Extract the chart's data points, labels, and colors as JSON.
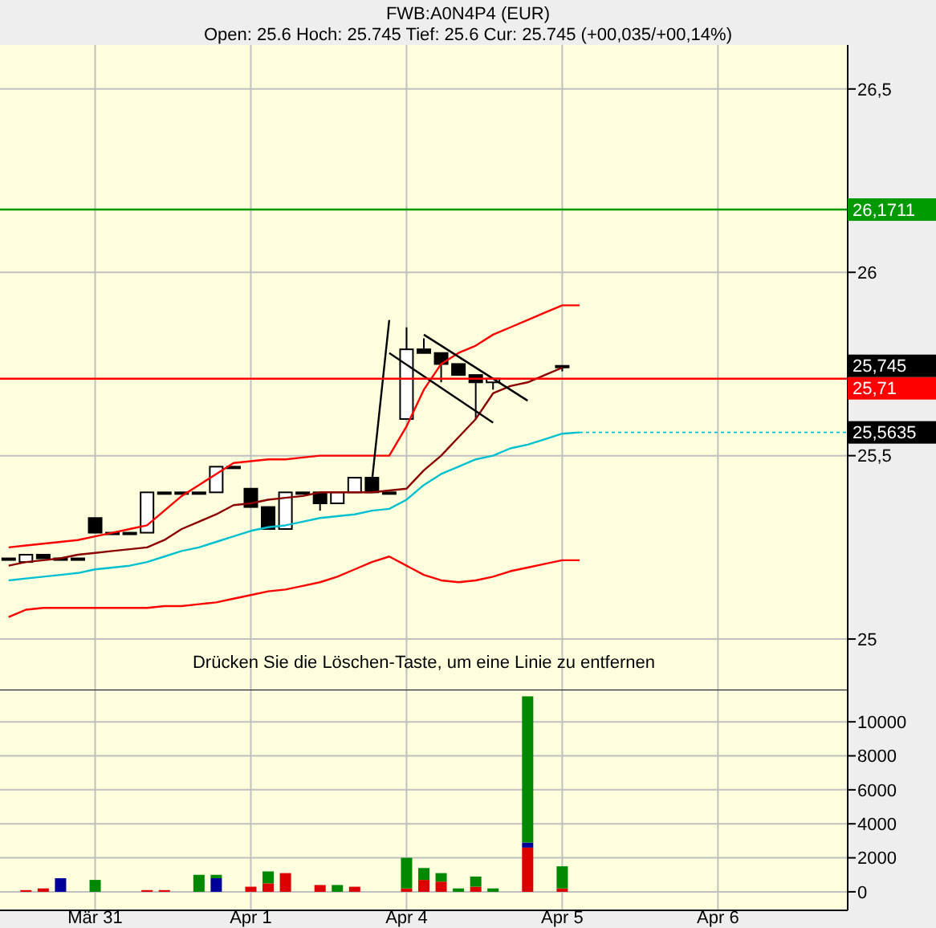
{
  "chart_data": [
    {
      "type": "candlestick",
      "title": "FWB:A0N4P4 (EUR)",
      "subtitle": "Open: 25.6 Hoch: 25.745 Tief: 25.6 Cur: 25.745 (+00,035/+00,14%)",
      "categories": [
        null,
        null,
        null,
        null,
        null,
        null,
        null,
        null,
        null,
        null,
        null,
        null,
        null,
        null,
        null,
        null,
        null,
        null,
        null,
        null,
        null,
        null,
        null,
        null,
        null,
        null,
        null,
        null,
        null,
        null,
        null,
        null,
        null,
        null,
        null,
        null,
        null,
        null,
        null,
        null,
        null,
        null,
        null,
        null,
        null,
        null,
        null,
        null,
        null
      ],
      "ohlc": [
        [
          25.22,
          25.22,
          25.22,
          25.22
        ],
        [
          25.21,
          25.23,
          25.21,
          25.23
        ],
        [
          25.23,
          25.23,
          25.22,
          25.22
        ],
        [
          25.22,
          25.22,
          25.22,
          25.22
        ],
        [
          25.22,
          25.22,
          25.22,
          25.22
        ],
        [
          25.33,
          25.33,
          25.29,
          25.29
        ],
        [
          25.29,
          25.29,
          25.29,
          25.29
        ],
        [
          25.29,
          25.29,
          25.29,
          25.29
        ],
        [
          25.29,
          25.4,
          25.29,
          25.4
        ],
        [
          25.4,
          25.4,
          25.4,
          25.4
        ],
        [
          25.4,
          25.4,
          25.4,
          25.4
        ],
        [
          25.4,
          25.4,
          25.4,
          25.4
        ],
        [
          25.4,
          25.47,
          25.4,
          25.47
        ],
        [
          25.47,
          25.47,
          25.47,
          25.47
        ],
        [
          25.41,
          25.41,
          25.36,
          25.36
        ],
        [
          25.36,
          25.36,
          25.3,
          25.3
        ],
        [
          25.3,
          25.4,
          25.3,
          25.4
        ],
        [
          25.4,
          25.4,
          25.4,
          25.4
        ],
        [
          25.4,
          25.4,
          25.35,
          25.37
        ],
        [
          25.37,
          25.4,
          25.37,
          25.4
        ],
        [
          25.4,
          25.44,
          25.4,
          25.44
        ],
        [
          25.44,
          25.44,
          25.4,
          25.4
        ],
        [
          25.4,
          25.4,
          25.4,
          25.4
        ],
        [
          25.6,
          25.85,
          25.6,
          25.79
        ],
        [
          25.79,
          25.82,
          25.78,
          25.78
        ],
        [
          25.78,
          25.78,
          25.7,
          25.75
        ],
        [
          25.75,
          25.75,
          25.72,
          25.72
        ],
        [
          25.72,
          25.72,
          25.6,
          25.7
        ],
        [
          25.7,
          25.71,
          25.68,
          25.71
        ],
        null,
        null,
        null,
        [
          25.745,
          25.745,
          25.73,
          25.745
        ],
        null,
        null,
        null,
        null,
        null,
        null,
        null,
        null,
        null,
        null,
        null,
        null,
        null,
        null,
        null,
        null
      ],
      "value_labels": [
        null,
        null,
        null,
        null,
        null,
        null,
        null,
        null,
        null,
        null,
        null,
        null,
        null,
        null,
        null,
        null,
        null,
        null,
        null,
        null,
        null,
        null,
        null,
        null,
        null,
        null,
        null,
        null,
        null,
        null,
        null,
        null,
        "25,745",
        null,
        null,
        null,
        null,
        null,
        null,
        null,
        null,
        null,
        null,
        null,
        null,
        null,
        null,
        null,
        null
      ],
      "series": [
        {
          "type": "line",
          "color": "#ff0000",
          "values": [
            25.25,
            25.255,
            25.26,
            25.265,
            25.27,
            25.28,
            25.29,
            25.3,
            25.31,
            25.35,
            25.39,
            25.42,
            25.45,
            25.48,
            25.485,
            25.49,
            25.49,
            25.495,
            25.5,
            25.5,
            25.5,
            25.5,
            25.5,
            25.58,
            25.68,
            25.75,
            25.78,
            25.8,
            25.83,
            25.85,
            25.87,
            25.89,
            25.91,
            25.91,
            null,
            null,
            null,
            null,
            null,
            null,
            null,
            null,
            null,
            null,
            null,
            null,
            null,
            null,
            null
          ]
        },
        {
          "type": "line",
          "color": "#8b0000",
          "values": [
            25.2,
            25.21,
            25.215,
            25.22,
            25.23,
            25.235,
            25.24,
            25.245,
            25.25,
            25.27,
            25.3,
            25.32,
            25.34,
            25.365,
            25.37,
            25.38,
            25.385,
            25.39,
            25.4,
            25.4,
            25.4,
            25.4,
            25.405,
            25.41,
            25.46,
            25.5,
            25.55,
            25.6,
            25.67,
            25.69,
            25.7,
            25.72,
            25.74,
            null,
            null,
            null,
            null,
            null,
            null,
            null,
            null,
            null,
            null,
            null,
            null,
            null,
            null,
            null,
            null
          ]
        },
        {
          "type": "line",
          "color": "#00c0d0",
          "values": [
            25.16,
            25.165,
            25.17,
            25.175,
            25.18,
            25.19,
            25.195,
            25.2,
            25.21,
            25.225,
            25.24,
            25.25,
            25.265,
            25.28,
            25.295,
            25.305,
            25.31,
            25.32,
            25.33,
            25.335,
            25.34,
            25.35,
            25.355,
            25.38,
            25.42,
            25.45,
            25.47,
            25.49,
            25.5,
            25.52,
            25.53,
            25.545,
            25.56,
            25.5635,
            null,
            null,
            null,
            null,
            null,
            null,
            null,
            null,
            null,
            null,
            null,
            null,
            null,
            null,
            null
          ],
          "value_labels": [
            null,
            null,
            null,
            null,
            null,
            null,
            null,
            null,
            null,
            null,
            null,
            null,
            null,
            null,
            null,
            null,
            null,
            null,
            null,
            null,
            null,
            null,
            null,
            null,
            null,
            null,
            null,
            null,
            null,
            null,
            null,
            null,
            null,
            "25,5635",
            null,
            null,
            null,
            null,
            null,
            null,
            null,
            null,
            null,
            null,
            null,
            null,
            null,
            null,
            null
          ]
        },
        {
          "type": "line",
          "color": "#ff0000",
          "values": [
            25.06,
            25.08,
            25.085,
            25.085,
            25.085,
            25.085,
            25.085,
            25.085,
            25.085,
            25.09,
            25.09,
            25.095,
            25.1,
            25.11,
            25.12,
            25.13,
            25.135,
            25.145,
            25.155,
            25.17,
            25.19,
            25.21,
            25.225,
            25.2,
            25.175,
            25.16,
            25.155,
            25.16,
            25.17,
            25.185,
            25.195,
            25.205,
            25.215,
            25.215,
            null,
            null,
            null,
            null,
            null,
            null,
            null,
            null,
            null,
            null,
            null,
            null,
            null,
            null,
            null
          ]
        },
        {
          "type": "line",
          "color": "#000000",
          "values": [
            null,
            null,
            null,
            null,
            null,
            null,
            null,
            null,
            null,
            null,
            null,
            null,
            null,
            null,
            null,
            null,
            null,
            null,
            null,
            null,
            null,
            25.43,
            25.87,
            null,
            null,
            null,
            null,
            null,
            null,
            null,
            null,
            null,
            null,
            null,
            null,
            null,
            null,
            null,
            null,
            null,
            null,
            null,
            null,
            null,
            null,
            null,
            null,
            null,
            null
          ]
        },
        {
          "type": "line",
          "color": "#000000",
          "values": [
            null,
            null,
            null,
            null,
            null,
            null,
            null,
            null,
            null,
            null,
            null,
            null,
            null,
            null,
            null,
            null,
            null,
            null,
            null,
            null,
            null,
            null,
            null,
            null,
            25.83,
            null,
            null,
            null,
            null,
            null,
            25.65,
            null,
            null,
            null,
            null,
            null,
            null,
            null,
            null,
            null,
            null,
            null,
            null,
            null,
            null,
            null,
            null,
            null,
            null
          ]
        },
        {
          "type": "line",
          "color": "#000000",
          "values": [
            null,
            null,
            null,
            null,
            null,
            null,
            null,
            null,
            null,
            null,
            null,
            null,
            null,
            null,
            null,
            null,
            null,
            null,
            null,
            null,
            null,
            null,
            25.78,
            null,
            null,
            null,
            null,
            null,
            25.59,
            null,
            null,
            null,
            null,
            null,
            null,
            null,
            null,
            null,
            null,
            null,
            null,
            null,
            null,
            null,
            null,
            null,
            null,
            null,
            null
          ]
        }
      ],
      "ylim": [
        24.86,
        26.62
      ],
      "yticks": [
        {
          "value": 25,
          "label": "25"
        },
        {
          "value": 25.5,
          "label": "25,5"
        },
        {
          "value": 26,
          "label": "26"
        },
        {
          "value": 26.5,
          "label": "26,5"
        }
      ],
      "grid": true,
      "tick_labels": "y",
      "ref_lines": [
        {
          "axis": "y",
          "value": 25.71,
          "label": "25,71",
          "color": "#ff0000"
        },
        {
          "axis": "y",
          "value": 26.1711,
          "label": "26,1711",
          "color": "#009900"
        }
      ],
      "annotations": [
        "Drücken Sie die Löschen-Taste, um eine Linie zu entfernen"
      ]
    },
    {
      "type": "bar",
      "stacked": true,
      "categories": [
        null,
        null,
        null,
        null,
        null,
        "Mär 31",
        null,
        null,
        null,
        null,
        null,
        null,
        null,
        null,
        "Apr 1",
        null,
        null,
        null,
        null,
        null,
        null,
        null,
        null,
        "Apr 4",
        null,
        null,
        null,
        null,
        null,
        null,
        null,
        null,
        "Apr 5",
        null,
        null,
        null,
        null,
        null,
        null,
        null,
        null,
        "Apr 6",
        null,
        null,
        null,
        null,
        null,
        null,
        null
      ],
      "series": [
        {
          "color": "#dd0000",
          "values": [
            null,
            100,
            200,
            null,
            null,
            null,
            null,
            null,
            100,
            100,
            null,
            null,
            null,
            null,
            300,
            500,
            1100,
            null,
            400,
            null,
            300,
            null,
            null,
            200,
            700,
            600,
            null,
            300,
            null,
            null,
            2600,
            null,
            200,
            null,
            null,
            null,
            null,
            null,
            null,
            null,
            null,
            null,
            null,
            null,
            null,
            null,
            null,
            null,
            null
          ]
        },
        {
          "color": "#000099",
          "values": [
            null,
            null,
            null,
            800,
            null,
            null,
            null,
            null,
            null,
            null,
            null,
            null,
            800,
            null,
            null,
            null,
            null,
            null,
            null,
            null,
            null,
            null,
            null,
            null,
            null,
            null,
            null,
            null,
            null,
            null,
            300,
            null,
            null,
            null,
            null,
            null,
            null,
            null,
            null,
            null,
            null,
            null,
            null,
            null,
            null,
            null,
            null,
            null,
            null
          ]
        },
        {
          "color": "#008800",
          "values": [
            null,
            null,
            null,
            null,
            null,
            700,
            null,
            null,
            null,
            null,
            null,
            1000,
            200,
            null,
            null,
            700,
            null,
            null,
            null,
            400,
            null,
            null,
            null,
            1800,
            700,
            500,
            200,
            600,
            200,
            null,
            8600,
            null,
            1300,
            null,
            null,
            null,
            null,
            null,
            null,
            null,
            null,
            null,
            null,
            null,
            null,
            null,
            null,
            null,
            null
          ]
        }
      ],
      "ylim": [
        -1090,
        11850
      ],
      "yticks": [
        0,
        2000,
        4000,
        6000,
        8000,
        10000
      ],
      "grid": true
    }
  ]
}
